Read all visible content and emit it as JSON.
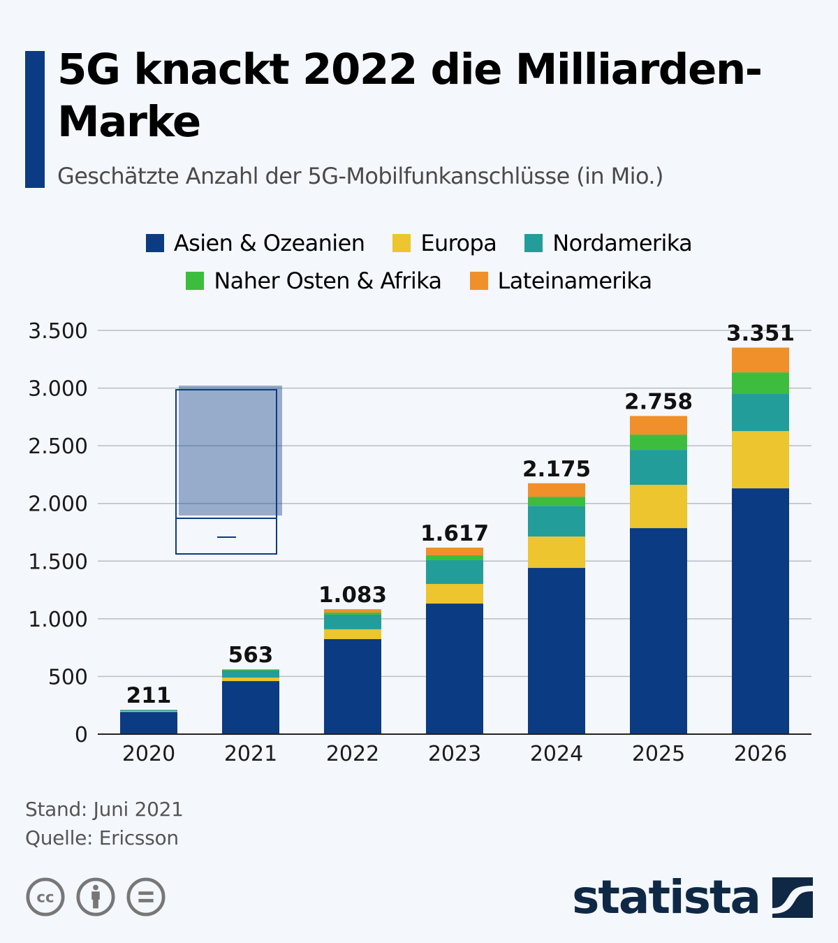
{
  "header": {
    "title": "5G knackt 2022 die Milliarden-Marke",
    "subtitle": "Geschätzte Anzahl der 5G-Mobilfunkanschlüsse (in Mio.)",
    "accent_color": "#0b3b82"
  },
  "legend": [
    {
      "name": "Asien & Ozeanien",
      "color": "#0b3b82"
    },
    {
      "name": "Europa",
      "color": "#ecc52f"
    },
    {
      "name": "Nordamerika",
      "color": "#239d9a"
    },
    {
      "name": "Naher Osten & Afrika",
      "color": "#3dbd3d"
    },
    {
      "name": "Lateinamerika",
      "color": "#f0902b"
    }
  ],
  "chart_data": {
    "type": "bar",
    "stacked": true,
    "title": "5G knackt 2022 die Milliarden-Marke",
    "subtitle": "Geschätzte Anzahl der 5G-Mobilfunkanschlüsse (in Mio.)",
    "xlabel": "",
    "ylabel": "",
    "categories": [
      "2020",
      "2021",
      "2022",
      "2023",
      "2024",
      "2025",
      "2026"
    ],
    "series": [
      {
        "name": "Asien & Ozeanien",
        "color": "#0b3b82",
        "values": [
          193,
          460,
          824,
          1132,
          1441,
          1786,
          2131
        ]
      },
      {
        "name": "Europa",
        "color": "#ecc52f",
        "values": [
          7,
          30,
          85,
          170,
          272,
          375,
          496
        ]
      },
      {
        "name": "Nordamerika",
        "color": "#239d9a",
        "values": [
          9,
          61,
          127,
          206,
          266,
          303,
          327
        ]
      },
      {
        "name": "Naher Osten & Afrika",
        "color": "#3dbd3d",
        "values": [
          1,
          7,
          18,
          42,
          79,
          133,
          182
        ]
      },
      {
        "name": "Lateinamerika",
        "color": "#f0902b",
        "values": [
          1,
          5,
          29,
          67,
          117,
          161,
          215
        ]
      }
    ],
    "totals": [
      211,
      563,
      1083,
      1617,
      2175,
      2758,
      3351
    ],
    "total_labels": [
      "211",
      "563",
      "1.083",
      "1.617",
      "2.175",
      "2.758",
      "3.351"
    ],
    "ylim": [
      0,
      3500
    ],
    "yticks": [
      0,
      500,
      1000,
      1500,
      2000,
      2500,
      3000,
      3500
    ],
    "ytick_labels": [
      "0",
      "500",
      "1.000",
      "1.500",
      "2.000",
      "2.500",
      "3.000",
      "3.500"
    ],
    "grid": true,
    "legend_position": "top-center"
  },
  "footer": {
    "stand": "Stand: Juni 2021",
    "quelle": "Quelle: Ericsson",
    "license_icons": [
      "cc-icon",
      "attribution-icon",
      "no-derivatives-icon"
    ],
    "brand": "statista",
    "brand_color": "#0f2845"
  }
}
